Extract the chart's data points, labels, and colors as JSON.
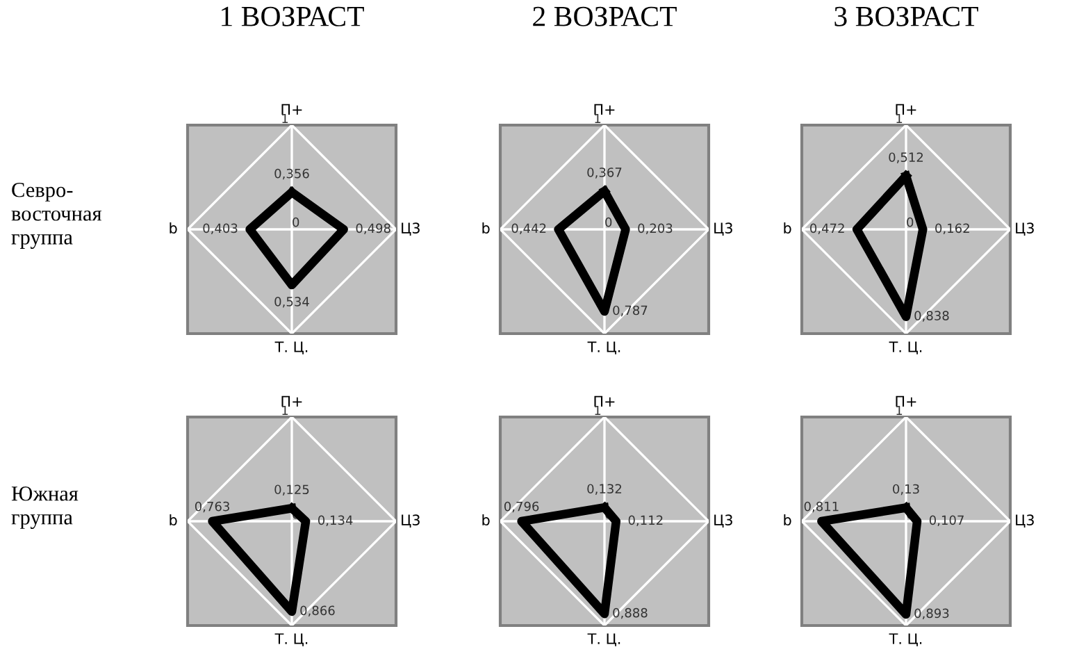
{
  "chart_data": [
    {
      "type": "radar",
      "title": "1 ВОЗРАСТ",
      "annotations": [
        "Севро-\nвосточная\nгруппа"
      ],
      "categories": [
        "П+",
        "Ц3",
        "Т. Ц.",
        "b"
      ],
      "ylim": [
        0,
        1
      ],
      "yticks": [
        0,
        1
      ],
      "series": [
        {
          "color": "#000000",
          "values": [
            0.356,
            0.498,
            0.534,
            0.403
          ],
          "value_labels": [
            "0,356",
            "0,498",
            "0,534",
            "0,403"
          ]
        }
      ]
    },
    {
      "type": "radar",
      "title": "2 ВОЗРАСТ",
      "categories": [
        "П+",
        "Ц3",
        "Т. Ц.",
        "b"
      ],
      "ylim": [
        0,
        1
      ],
      "yticks": [
        0,
        1
      ],
      "series": [
        {
          "color": "#000000",
          "values": [
            0.367,
            0.203,
            0.787,
            0.442
          ],
          "value_labels": [
            "0,367",
            "0,203",
            "0,787",
            "0,442"
          ]
        }
      ]
    },
    {
      "type": "radar",
      "title": "3 ВОЗРАСТ",
      "categories": [
        "П+",
        "Ц3",
        "Т. Ц.",
        "b"
      ],
      "ylim": [
        0,
        1
      ],
      "yticks": [
        0,
        1
      ],
      "series": [
        {
          "color": "#000000",
          "values": [
            0.512,
            0.162,
            0.838,
            0.472
          ],
          "value_labels": [
            "0,512",
            "0,162",
            "0,838",
            "0,472"
          ]
        }
      ]
    },
    {
      "type": "radar",
      "annotations": [
        "Южная\nгруппа"
      ],
      "categories": [
        "П+",
        "Ц3",
        "Т. Ц.",
        "b"
      ],
      "ylim": [
        0,
        1
      ],
      "yticks": [
        0,
        1
      ],
      "series": [
        {
          "color": "#000000",
          "values": [
            0.125,
            0.134,
            0.866,
            0.763
          ],
          "value_labels": [
            "0,125",
            "0,134",
            "0,866",
            "0,763"
          ]
        }
      ]
    },
    {
      "type": "radar",
      "categories": [
        "П+",
        "Ц3",
        "Т. Ц.",
        "b"
      ],
      "ylim": [
        0,
        1
      ],
      "yticks": [
        0,
        1
      ],
      "series": [
        {
          "color": "#000000",
          "values": [
            0.132,
            0.112,
            0.888,
            0.796
          ],
          "value_labels": [
            "0,132",
            "0,112",
            "0,888",
            "0,796"
          ]
        }
      ]
    },
    {
      "type": "radar",
      "categories": [
        "П+",
        "Ц3",
        "Т. Ц.",
        "b"
      ],
      "ylim": [
        0,
        1
      ],
      "yticks": [
        0,
        1
      ],
      "series": [
        {
          "color": "#000000",
          "values": [
            0.13,
            0.107,
            0.893,
            0.811
          ],
          "value_labels": [
            "0,13",
            "0,107",
            "0,893",
            "0,811"
          ]
        }
      ]
    }
  ]
}
